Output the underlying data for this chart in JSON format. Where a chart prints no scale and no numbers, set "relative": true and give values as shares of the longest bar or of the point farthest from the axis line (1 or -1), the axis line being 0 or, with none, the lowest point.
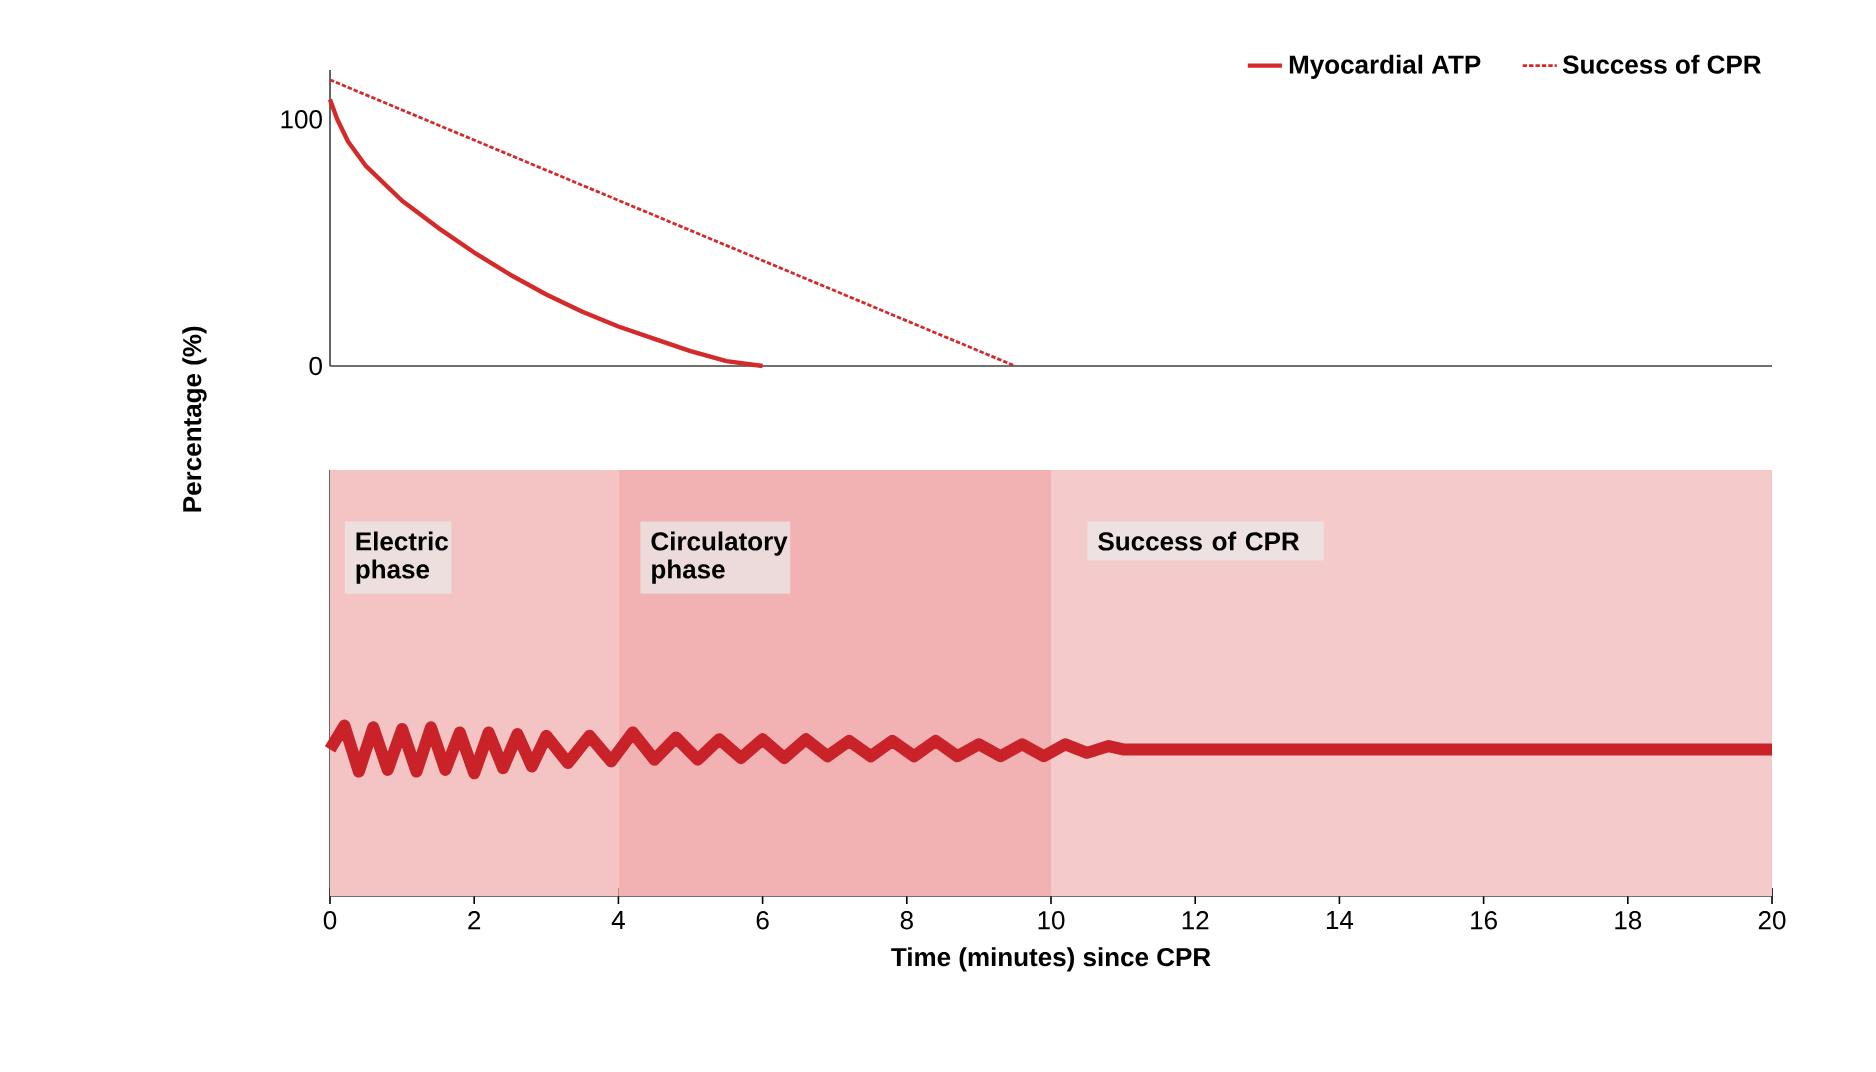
{
  "chart_data": [
    {
      "type": "line",
      "ylabel": "Percentage (%)",
      "xlim": [
        0,
        20
      ],
      "ylim": [
        0,
        120
      ],
      "yticks": [
        0,
        100
      ],
      "tick_labels": "y",
      "legend": "top right",
      "line_style": "solid",
      "series": [
        {
          "name": "Myocardial ATP",
          "color": "#d42a2a",
          "x": [
            0,
            0.1,
            0.25,
            0.5,
            1,
            1.5,
            2,
            2.5,
            3,
            3.5,
            4,
            4.5,
            5,
            5.5,
            6
          ],
          "values": [
            108,
            100,
            91,
            81,
            67,
            56,
            46,
            37,
            29,
            22,
            16,
            11,
            6,
            2,
            0
          ]
        },
        {
          "name": "Success of CPR",
          "color": "#d42a2a",
          "line_style": "dotted",
          "x": [
            0,
            9.5
          ],
          "values": [
            116,
            0
          ]
        }
      ]
    },
    {
      "type": "line",
      "relative": true,
      "xlabel": "Time (minutes) since CPR",
      "xlim": [
        0,
        20
      ],
      "xticks": [
        0,
        2,
        4,
        6,
        8,
        10,
        12,
        14,
        16,
        18,
        20
      ],
      "series": [
        {
          "color": "#c92228",
          "x": [
            0,
            0.2,
            0.4,
            0.6,
            0.8,
            1.0,
            1.2,
            1.4,
            1.6,
            1.8,
            2.0,
            2.2,
            2.4,
            2.6,
            2.8,
            3.0,
            3.3,
            3.6,
            3.9,
            4.2,
            4.5,
            4.8,
            5.1,
            5.4,
            5.7,
            6.0,
            6.3,
            6.6,
            6.9,
            7.2,
            7.5,
            7.8,
            8.1,
            8.4,
            8.7,
            9.0,
            9.3,
            9.6,
            9.9,
            10.2,
            10.5,
            10.8,
            11,
            20
          ],
          "values": [
            0.86,
            1.0,
            0.73,
            0.99,
            0.74,
            0.98,
            0.73,
            0.99,
            0.74,
            0.96,
            0.72,
            0.96,
            0.75,
            0.95,
            0.76,
            0.94,
            0.78,
            0.94,
            0.79,
            0.96,
            0.8,
            0.93,
            0.8,
            0.92,
            0.81,
            0.92,
            0.81,
            0.92,
            0.82,
            0.91,
            0.82,
            0.91,
            0.82,
            0.91,
            0.82,
            0.89,
            0.82,
            0.89,
            0.82,
            0.89,
            0.84,
            0.88,
            0.86,
            0.86
          ]
        }
      ],
      "bands": [
        {
          "axis": "x",
          "from": 0,
          "to": 4,
          "label": "Electric phase",
          "color": "#f4c4c4"
        },
        {
          "axis": "x",
          "from": 4,
          "to": 10,
          "label": "Circulatory phase",
          "color": "#f2b2b3"
        },
        {
          "axis": "x",
          "from": 10,
          "to": 20,
          "label": "Success of CPR",
          "color": "#f5caca"
        }
      ]
    }
  ]
}
